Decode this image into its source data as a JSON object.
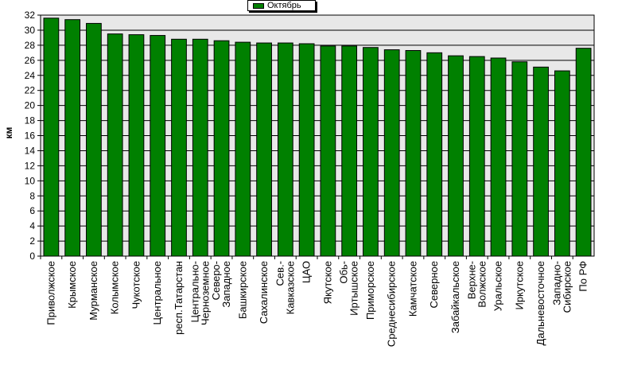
{
  "chart_data": {
    "type": "bar",
    "legend": {
      "position": "top-center"
    },
    "series": [
      {
        "name": "Октябрь",
        "color": "#008000",
        "values": [
          31.6,
          31.4,
          30.9,
          29.5,
          29.4,
          29.3,
          28.8,
          28.8,
          28.6,
          28.4,
          28.3,
          28.3,
          28.2,
          27.9,
          27.9,
          27.7,
          27.4,
          27.3,
          27.0,
          26.6,
          26.5,
          26.3,
          25.8,
          25.1,
          24.6,
          27.6
        ]
      }
    ],
    "categories": [
      "Приволжское",
      "Крымское",
      "Мурманское",
      "Колымское",
      "Чукотское",
      "Центральное",
      "респ.Татарстан",
      "Центрально-Черноземное",
      "Северо-Западное",
      "Башкирское",
      "Сахалинское",
      "Сев.-Кавказское",
      "ЦАО",
      "Якутское",
      "Обь-Иртышское",
      "Приморское",
      "Среднесибирское",
      "Камчатское",
      "Северное",
      "Забайкальское",
      "Верхне-Волжское",
      "Уральское",
      "Иркутское",
      "Дальневосточное",
      "Западно-Сибирское",
      "По РФ"
    ],
    "tick_labels": [
      [
        "Приволжское"
      ],
      [
        "Крымское"
      ],
      [
        "Мурманское"
      ],
      [
        "Колымское"
      ],
      [
        "Чукотское"
      ],
      [
        "Центральное"
      ],
      [
        "респ.Татарстан"
      ],
      [
        "Центрально-",
        "Черноземное"
      ],
      [
        "Северо-",
        "Западное"
      ],
      [
        "Башкирское"
      ],
      [
        "Сахалинское"
      ],
      [
        "Сев.-",
        "Кавказское"
      ],
      [
        "ЦАО"
      ],
      [
        "Якутское"
      ],
      [
        "Обь-",
        "Иртышское"
      ],
      [
        "Приморское"
      ],
      [
        "Среднесибирское"
      ],
      [
        "Камчатское"
      ],
      [
        "Северное"
      ],
      [
        "Забайкальское"
      ],
      [
        "Верхне-",
        "Волжское"
      ],
      [
        "Уральское"
      ],
      [
        "Иркутское"
      ],
      [
        "Дальневосточное"
      ],
      [
        "Западно-",
        "Сибирское"
      ],
      [
        "По РФ"
      ]
    ],
    "ylabel": "км",
    "xlabel": "",
    "title": "",
    "ylim": [
      0,
      32
    ],
    "yticks": [
      0,
      2,
      4,
      6,
      8,
      10,
      12,
      14,
      16,
      18,
      20,
      22,
      24,
      26,
      28,
      30,
      32
    ],
    "grid": true,
    "colors": {
      "bar": "#008000",
      "plot_background": "#e8e8e8",
      "grid": "#000000"
    }
  }
}
